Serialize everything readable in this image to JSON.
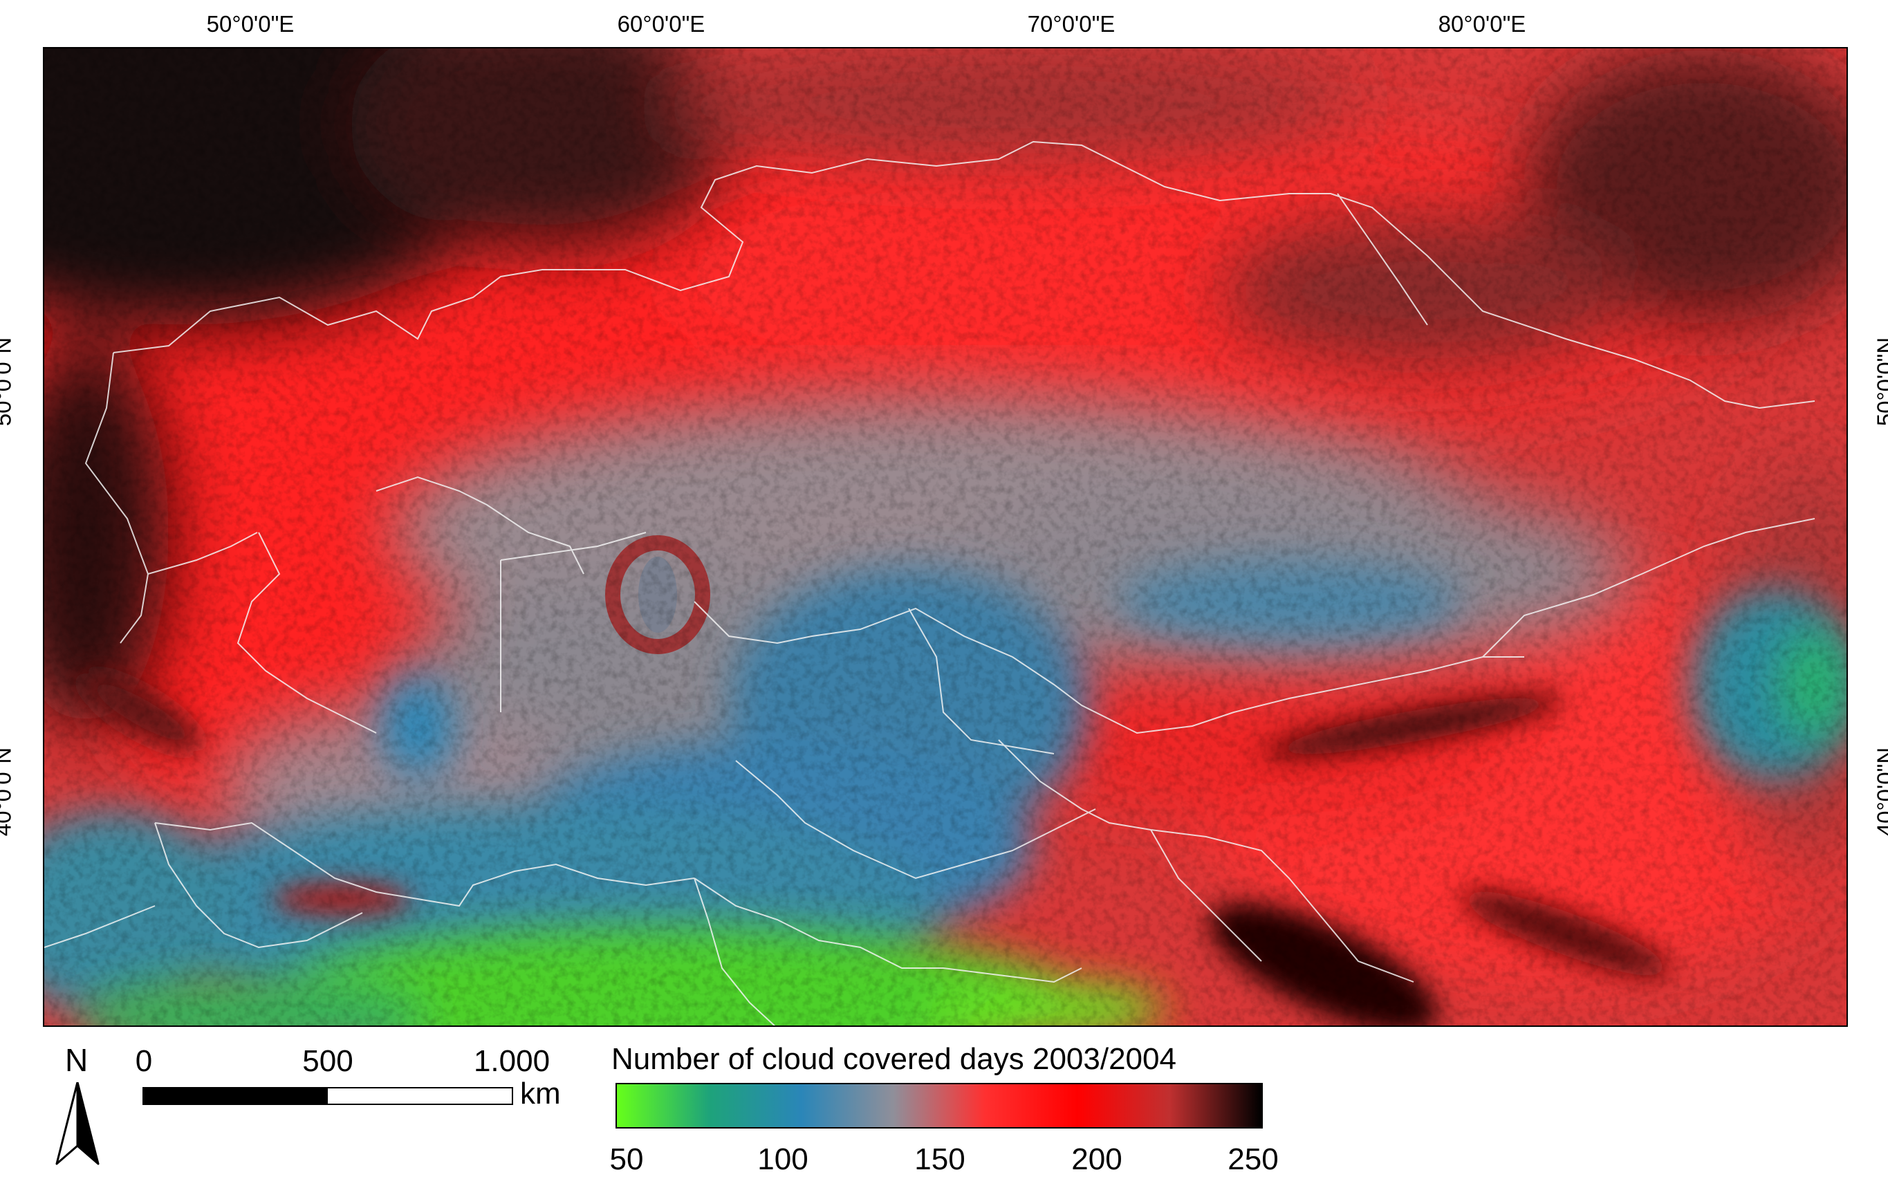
{
  "map": {
    "longitude_labels": [
      "50°0'0\"E",
      "60°0'0\"E",
      "70°0'0\"E",
      "80°0'0\"E"
    ],
    "latitude_labels": [
      "50°0'0\"N",
      "40°0'0\"N"
    ]
  },
  "north_arrow": {
    "letter": "N",
    "icon": "north-arrow-icon"
  },
  "scale_bar": {
    "ticks": [
      "0",
      "500",
      "1.000"
    ],
    "unit": "km"
  },
  "legend": {
    "title": "Number of cloud covered days 2003/2004",
    "ticks": [
      "50",
      "100",
      "150",
      "200",
      "250"
    ],
    "range": [
      50,
      250
    ],
    "gradient_colors": [
      "#66ff1a",
      "#1ea37a",
      "#2a86b8",
      "#8f8f9a",
      "#ff3030",
      "#ff0000",
      "#c03030",
      "#000000"
    ]
  }
}
